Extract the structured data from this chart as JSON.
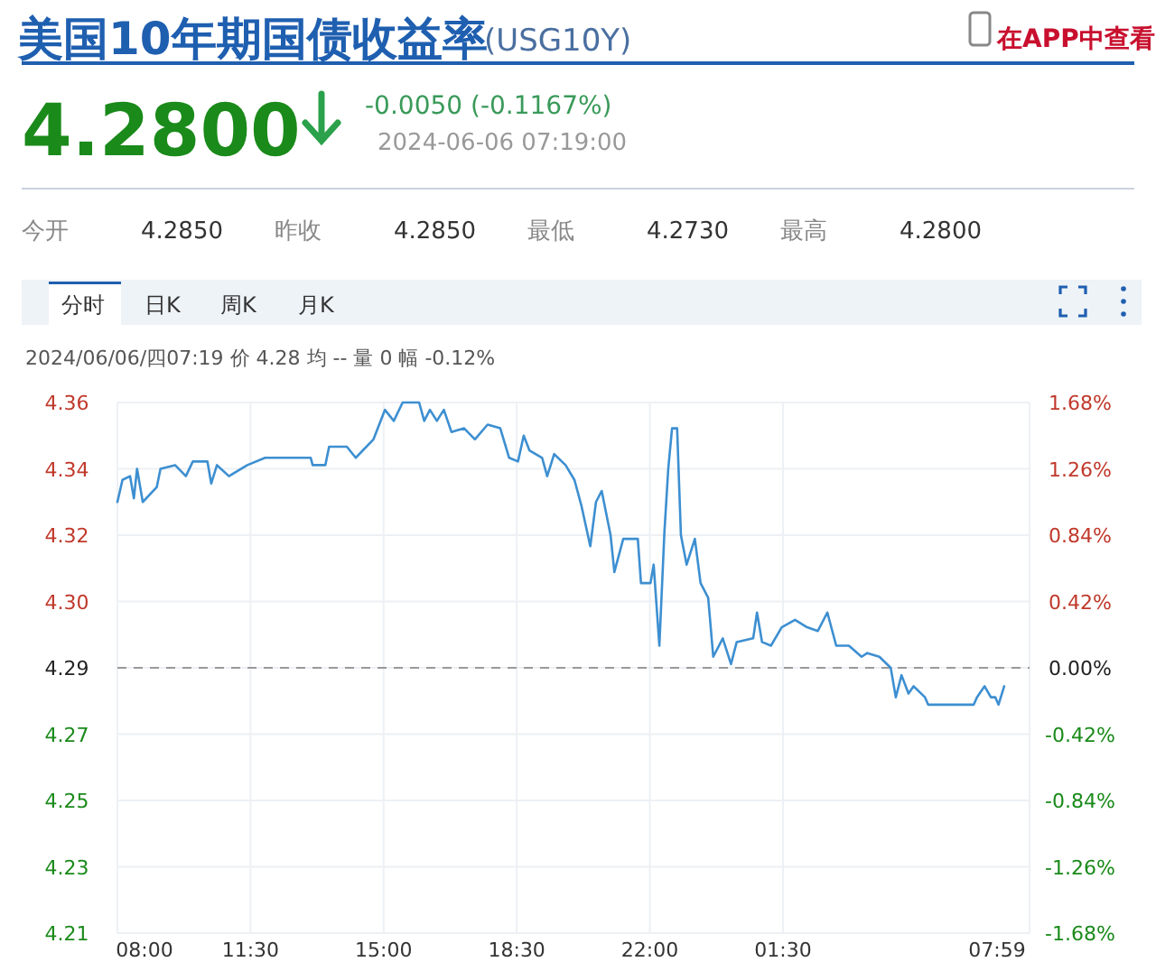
{
  "chart_data": {
    "type": "line",
    "title": "美国10年期国债收益率",
    "subtitle": "(USG10Y)",
    "annotations": [
      "在APP中查看",
      "4.2800",
      "-0.0050 (-0.1167%)",
      "2024-06-06 07:19:00",
      "今开",
      "4.2850",
      "昨收",
      "4.2850",
      "最低",
      "4.2730",
      "最高",
      "4.2800",
      "分时",
      "日K",
      "周K",
      "月K",
      "2024/06/06/四07:19 价 4.28 均 -- 量 0 幅 -0.12%"
    ],
    "x": [
      "2024-06-05T08:00",
      "2024-06-05T08:08",
      "2024-06-05T08:20",
      "2024-06-05T08:26",
      "2024-06-05T08:31",
      "2024-06-05T08:40",
      "2024-06-05T09:02",
      "2024-06-05T09:08",
      "2024-06-05T09:31",
      "2024-06-05T09:48",
      "2024-06-05T09:59",
      "2024-06-05T10:22",
      "2024-06-05T10:28",
      "2024-06-05T10:37",
      "2024-06-05T10:56",
      "2024-06-05T11:25",
      "2024-06-05T11:53",
      "2024-06-05T13:05",
      "2024-06-05T13:08",
      "2024-06-05T13:28",
      "2024-06-05T13:34",
      "2024-06-05T14:02",
      "2024-06-05T14:16",
      "2024-06-05T14:44",
      "2024-06-05T15:02",
      "2024-06-05T15:16",
      "2024-06-05T15:30",
      "2024-06-05T15:44",
      "2024-06-05T15:56",
      "2024-06-05T16:04",
      "2024-06-05T16:13",
      "2024-06-05T16:24",
      "2024-06-05T16:35",
      "2024-06-05T16:47",
      "2024-06-05T17:07",
      "2024-06-05T17:24",
      "2024-06-05T17:44",
      "2024-06-05T18:04",
      "2024-06-05T18:18",
      "2024-06-05T18:32",
      "2024-06-05T18:41",
      "2024-06-05T18:50",
      "2024-06-05T19:10",
      "2024-06-05T19:18",
      "2024-06-05T19:29",
      "2024-06-05T19:47",
      "2024-06-05T20:01",
      "2024-06-05T20:12",
      "2024-06-05T20:26",
      "2024-06-05T20:35",
      "2024-06-05T20:44",
      "2024-06-05T20:58",
      "2024-06-05T21:04",
      "2024-06-05T21:18",
      "2024-06-05T21:41",
      "2024-06-05T21:46",
      "2024-06-05T22:01",
      "2024-06-05T22:06",
      "2024-06-05T22:15",
      "2024-06-05T22:23",
      "2024-06-05T22:29",
      "2024-06-05T22:35",
      "2024-06-05T22:43",
      "2024-06-05T22:49",
      "2024-06-05T22:58",
      "2024-06-05T23:11",
      "2024-06-05T23:20",
      "2024-06-05T23:32",
      "2024-06-05T23:40",
      "2024-06-05T23:55",
      "2024-06-06T00:08",
      "2024-06-06T00:17",
      "2024-06-06T00:43",
      "2024-06-06T00:49",
      "2024-06-06T00:57",
      "2024-06-06T01:11",
      "2024-06-06T01:28",
      "2024-06-06T01:49",
      "2024-06-06T02:08",
      "2024-06-06T02:25",
      "2024-06-06T02:40",
      "2024-06-06T02:54",
      "2024-06-06T03:14",
      "2024-06-06T03:34",
      "2024-06-06T03:43",
      "2024-06-06T04:02",
      "2024-06-06T04:20",
      "2024-06-06T04:28",
      "2024-06-06T04:37",
      "2024-06-06T04:48",
      "2024-06-06T04:56",
      "2024-06-06T05:14",
      "2024-06-06T05:19",
      "2024-06-06T06:31",
      "2024-06-06T06:36",
      "2024-06-06T06:48",
      "2024-06-06T06:58",
      "2024-06-06T07:05",
      "2024-06-06T07:10",
      "2024-06-06T07:19"
    ],
    "series": [
      {
        "color": "#3d8fd1",
        "values": [
          4.33,
          4.336,
          4.337,
          4.331,
          4.339,
          4.33,
          4.334,
          4.339,
          4.34,
          4.337,
          4.341,
          4.341,
          4.335,
          4.34,
          4.337,
          4.34,
          4.342,
          4.342,
          4.34,
          4.34,
          4.345,
          4.345,
          4.342,
          4.347,
          4.355,
          4.352,
          4.357,
          4.357,
          4.357,
          4.352,
          4.355,
          4.352,
          4.355,
          4.349,
          4.35,
          4.347,
          4.351,
          4.35,
          4.342,
          4.341,
          4.348,
          4.344,
          4.342,
          4.337,
          4.343,
          4.34,
          4.336,
          4.329,
          4.318,
          4.33,
          4.333,
          4.321,
          4.311,
          4.32,
          4.32,
          4.308,
          4.308,
          4.313,
          4.291,
          4.322,
          4.339,
          4.35,
          4.35,
          4.321,
          4.313,
          4.32,
          4.308,
          4.304,
          4.288,
          4.293,
          4.286,
          4.292,
          4.293,
          4.3,
          4.292,
          4.291,
          4.296,
          4.298,
          4.296,
          4.295,
          4.3,
          4.291,
          4.291,
          4.288,
          4.289,
          4.288,
          4.285,
          4.277,
          4.283,
          4.278,
          4.28,
          4.277,
          4.275,
          4.275,
          4.277,
          4.28,
          4.277,
          4.277,
          4.275,
          4.28
        ]
      }
    ],
    "xlim": [
      "2024-06-05T08:00",
      "2024-06-06T07:59"
    ],
    "xticks": [
      {
        "value": "2024-06-05T08:00",
        "label": "08:00"
      },
      {
        "value": "2024-06-05T11:30",
        "label": "11:30"
      },
      {
        "value": "2024-06-05T15:00",
        "label": "15:00"
      },
      {
        "value": "2024-06-05T18:30",
        "label": "18:30"
      },
      {
        "value": "2024-06-05T22:00",
        "label": "22:00"
      },
      {
        "value": "2024-06-06T01:30",
        "label": "01:30"
      },
      {
        "value": "2024-06-06T07:59",
        "label": "07:59"
      }
    ],
    "ylim": [
      4.213,
      4.357
    ],
    "yticks": [
      {
        "value": 4.357,
        "label": "4.36"
      },
      {
        "value": 4.339,
        "label": "4.34"
      },
      {
        "value": 4.321,
        "label": "4.32"
      },
      {
        "value": 4.303,
        "label": "4.30"
      },
      {
        "value": 4.285,
        "label": "4.29"
      },
      {
        "value": 4.267,
        "label": "4.27"
      },
      {
        "value": 4.249,
        "label": "4.25"
      },
      {
        "value": 4.231,
        "label": "4.23"
      },
      {
        "value": 4.213,
        "label": "4.21"
      }
    ],
    "y2lim": [
      -1.68,
      1.68
    ],
    "y2ticks": [
      {
        "value": 1.68,
        "label": "1.68%"
      },
      {
        "value": 1.26,
        "label": "1.26%"
      },
      {
        "value": 0.84,
        "label": "0.84%"
      },
      {
        "value": 0.42,
        "label": "0.42%"
      },
      {
        "value": 0,
        "label": "0.00%"
      },
      {
        "value": -0.42,
        "label": "-0.42%"
      },
      {
        "value": -0.84,
        "label": "-0.84%"
      },
      {
        "value": -1.26,
        "label": "-1.26%"
      },
      {
        "value": -1.68,
        "label": "-1.68%"
      }
    ],
    "ref_lines": [
      {
        "axis": "y",
        "value": 4.285,
        "color": "#999999",
        "line_style": "dashed"
      }
    ],
    "grid": true
  }
}
